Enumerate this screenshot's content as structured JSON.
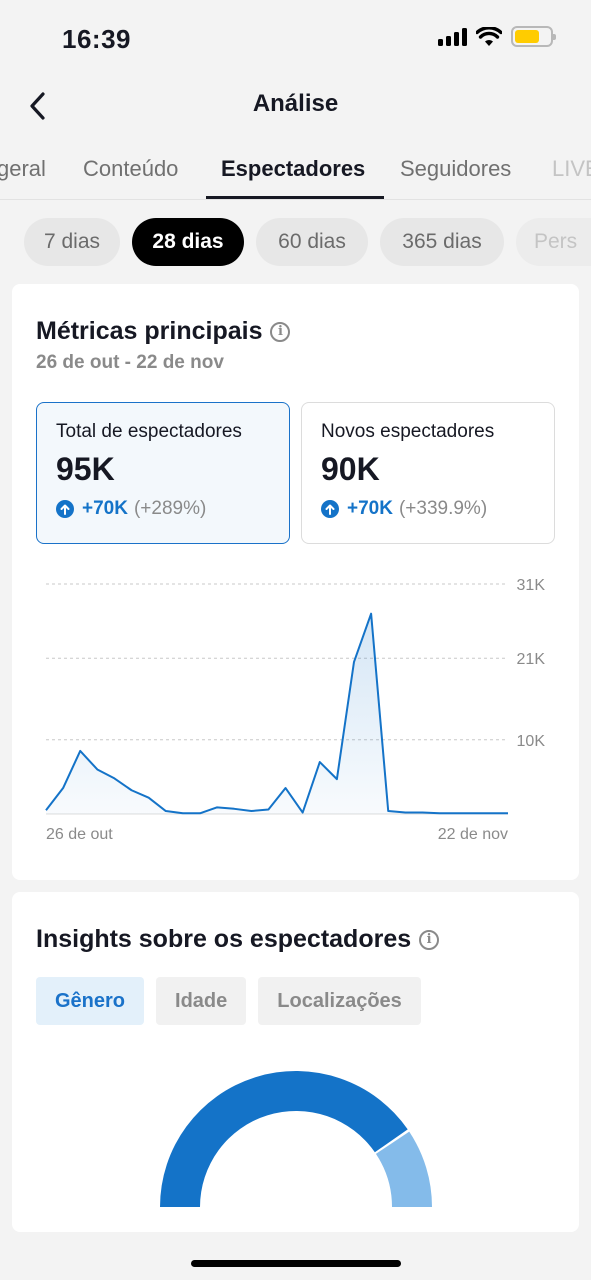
{
  "status_bar": {
    "time": "16:39"
  },
  "nav": {
    "title": "Análise"
  },
  "tabs": [
    {
      "label": "geral"
    },
    {
      "label": "Conteúdo"
    },
    {
      "label": "Espectadores",
      "active": true
    },
    {
      "label": "Seguidores"
    },
    {
      "label": "LIVE"
    }
  ],
  "ranges": [
    {
      "label": "7 dias"
    },
    {
      "label": "28 dias",
      "active": true
    },
    {
      "label": "60 dias"
    },
    {
      "label": "365 dias"
    },
    {
      "label": "Pers"
    }
  ],
  "metrics": {
    "title": "Métricas principais",
    "date_range": "26 de out - 22 de nov",
    "total": {
      "label": "Total de espectadores",
      "value": "95K",
      "change": "+70K",
      "change_pct": "(+289%)"
    },
    "new": {
      "label": "Novos espectadores",
      "value": "90K",
      "change": "+70K",
      "change_pct": "(+339.9%)"
    }
  },
  "chart_data": {
    "type": "area",
    "x_start_label": "26 de out",
    "x_end_label": "22 de nov",
    "y_ticks": [
      "10K",
      "21K",
      "31K"
    ],
    "ylim": [
      0,
      31000
    ],
    "grid": true,
    "accent": "#1473c8",
    "values": [
      500,
      3500,
      8500,
      6000,
      4800,
      3200,
      2200,
      400,
      100,
      100,
      900,
      700,
      400,
      600,
      3500,
      200,
      7000,
      4700,
      20500,
      27000,
      400,
      200,
      200,
      100,
      100,
      100,
      100,
      100
    ]
  },
  "insights": {
    "title": "Insights sobre os espectadores",
    "tabs": [
      {
        "label": "Gênero",
        "active": true
      },
      {
        "label": "Idade"
      },
      {
        "label": "Localizações"
      }
    ],
    "donut": {
      "primary_fraction": 0.81,
      "primary_color": "#1473c8",
      "secondary_color": "#84bbea"
    }
  },
  "colors": {
    "accent": "#1473c8",
    "selected_bg": "#f3f8fc"
  }
}
